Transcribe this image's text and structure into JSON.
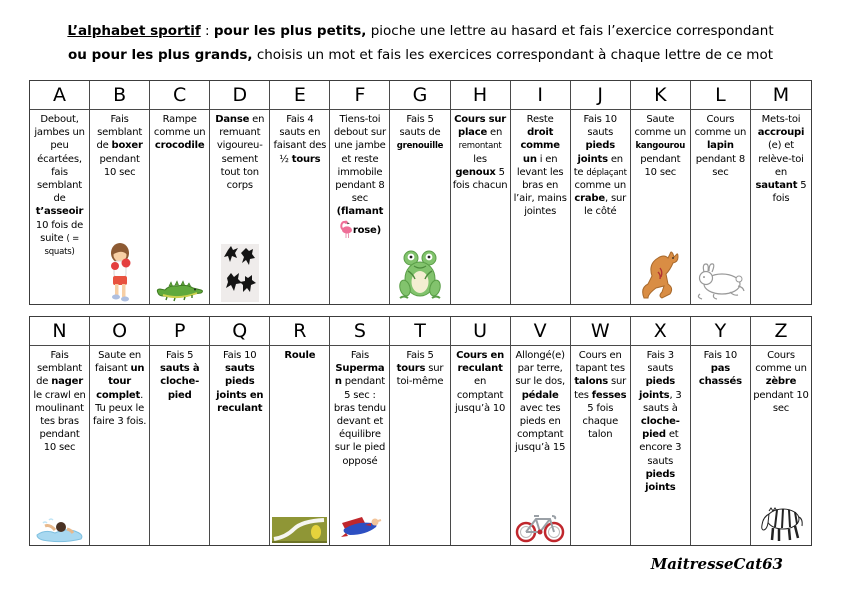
{
  "title": {
    "line1": [
      {
        "t": "L’alphabet sportif",
        "b": true,
        "u": true
      },
      {
        "t": " : "
      },
      {
        "t": "pour les plus petits,",
        "b": true
      },
      {
        "t": " pioche une lettre au hasard et fais l’exercice correspondant"
      }
    ],
    "line2": [
      {
        "t": "ou pour les plus grands,",
        "b": true
      },
      {
        "t": " choisis un mot et fais les exercices correspondant à chaque lettre de ce mot"
      }
    ]
  },
  "tables": [
    {
      "name": "letters-a-m",
      "cells": [
        {
          "letter": "A",
          "segments": [
            {
              "t": "Debout, jambes un peu écartées, fais semblant de "
            },
            {
              "t": "t’asseoir",
              "b": true
            },
            {
              "t": " 10 fois de suite "
            },
            {
              "t": "( = squats)",
              "s": true
            }
          ],
          "icon": null
        },
        {
          "letter": "B",
          "segments": [
            {
              "t": "Fais semblant de "
            },
            {
              "t": "boxer",
              "b": true
            },
            {
              "t": " pendant 10 sec"
            }
          ],
          "icon": "boxer-icon"
        },
        {
          "letter": "C",
          "segments": [
            {
              "t": "Rampe comme un "
            },
            {
              "t": "crocodile",
              "b": true
            }
          ],
          "icon": "crocodile-icon"
        },
        {
          "letter": "D",
          "segments": [
            {
              "t": "Danse",
              "b": true
            },
            {
              "t": " en remuant vigoureu-sement tout ton corps"
            }
          ],
          "icon": "dancers-icon"
        },
        {
          "letter": "E",
          "segments": [
            {
              "t": "Fais 4 sauts en faisant des ½ "
            },
            {
              "t": "tours",
              "b": true
            }
          ],
          "icon": null
        },
        {
          "letter": "F",
          "segments": [
            {
              "t": "Tiens-toi debout sur une jambe et reste immobile pendant 8 sec "
            },
            {
              "t": "(flamant ",
              "b": true
            },
            {
              "icon": "flamingo-icon"
            },
            {
              "t": "rose)",
              "b": true
            }
          ],
          "icon": null
        },
        {
          "letter": "G",
          "segments": [
            {
              "t": "Fais 5 sauts de "
            },
            {
              "t": "grenouille",
              "b": true,
              "s": true
            }
          ],
          "icon": "frog-icon"
        },
        {
          "letter": "H",
          "segments": [
            {
              "t": "Cours sur place",
              "b": true
            },
            {
              "t": " en "
            },
            {
              "t": "remontant",
              "s": true
            },
            {
              "t": " les "
            },
            {
              "t": "genoux",
              "b": true
            },
            {
              "t": " 5 fois chacun"
            }
          ],
          "icon": null
        },
        {
          "letter": "I",
          "segments": [
            {
              "t": "Reste "
            },
            {
              "t": "droit comme un",
              "b": true
            },
            {
              "t": " i en levant les bras en l’air, mains jointes"
            }
          ],
          "icon": null
        },
        {
          "letter": "J",
          "segments": [
            {
              "t": "Fais 10 sauts "
            },
            {
              "t": "pieds joints",
              "b": true
            },
            {
              "t": " en te "
            },
            {
              "t": "déplaçant",
              "s": true
            },
            {
              "t": " comme un "
            },
            {
              "t": "crabe",
              "b": true
            },
            {
              "t": ", sur le côté"
            }
          ],
          "icon": null
        },
        {
          "letter": "K",
          "segments": [
            {
              "t": "Saute comme un "
            },
            {
              "t": "kangourou",
              "b": true,
              "s": true
            },
            {
              "t": " pendant 10 sec"
            }
          ],
          "icon": "kangaroo-icon"
        },
        {
          "letter": "L",
          "segments": [
            {
              "t": "Cours comme un "
            },
            {
              "t": "lapin",
              "b": true
            },
            {
              "t": " pendant 8 sec"
            }
          ],
          "icon": "rabbit-icon"
        },
        {
          "letter": "M",
          "segments": [
            {
              "t": "Mets-toi "
            },
            {
              "t": "accroupi",
              "b": true
            },
            {
              "t": " (e) et relève-toi en "
            },
            {
              "t": "sautant",
              "b": true
            },
            {
              "t": " 5 fois"
            }
          ],
          "icon": null
        }
      ]
    },
    {
      "name": "letters-n-z",
      "cells": [
        {
          "letter": "N",
          "segments": [
            {
              "t": "Fais semblant de "
            },
            {
              "t": "nager",
              "b": true
            },
            {
              "t": " le crawl en moulinant tes bras pendant 10 sec"
            }
          ],
          "icon": "swimmer-icon"
        },
        {
          "letter": "O",
          "segments": [
            {
              "t": "Saute en faisant "
            },
            {
              "t": "un tour complet",
              "b": true
            },
            {
              "t": ". Tu peux le faire 3 fois."
            }
          ],
          "icon": null
        },
        {
          "letter": "P",
          "segments": [
            {
              "t": "Fais 5 "
            },
            {
              "t": "sauts à cloche-pied",
              "b": true
            }
          ],
          "icon": null
        },
        {
          "letter": "Q",
          "segments": [
            {
              "t": "Fais 10 "
            },
            {
              "t": "sauts pieds joints en reculant",
              "b": true
            }
          ],
          "icon": null
        },
        {
          "letter": "R",
          "segments": [
            {
              "t": "Roule",
              "b": true
            }
          ],
          "icon": "road-icon"
        },
        {
          "letter": "S",
          "segments": [
            {
              "t": "Fais "
            },
            {
              "t": "Superman",
              "b": true
            },
            {
              "t": " pendant 5 sec : bras tendu devant et équilibre sur le pied opposé"
            }
          ],
          "icon": "superman-icon"
        },
        {
          "letter": "T",
          "segments": [
            {
              "t": "Fais 5 "
            },
            {
              "t": "tours",
              "b": true
            },
            {
              "t": " sur toi-même"
            }
          ],
          "icon": null
        },
        {
          "letter": "U",
          "segments": [
            {
              "t": "Cours en reculant",
              "b": true
            },
            {
              "t": " en comptant jusqu’à 10"
            }
          ],
          "icon": null
        },
        {
          "letter": "V",
          "segments": [
            {
              "t": "Allongé(e) par terre, sur le dos, "
            },
            {
              "t": "pédale",
              "b": true
            },
            {
              "t": " avec tes pieds en comptant jusqu’à 15"
            }
          ],
          "icon": "bicycle-icon"
        },
        {
          "letter": "W",
          "segments": [
            {
              "t": "Cours en tapant tes "
            },
            {
              "t": "talons",
              "b": true
            },
            {
              "t": " sur tes "
            },
            {
              "t": "fesses",
              "b": true
            },
            {
              "t": " 5 fois chaque talon"
            }
          ],
          "icon": null
        },
        {
          "letter": "X",
          "segments": [
            {
              "t": "Fais 3 sauts "
            },
            {
              "t": "pieds joints",
              "b": true
            },
            {
              "t": ", 3 sauts à "
            },
            {
              "t": "cloche-pied",
              "b": true
            },
            {
              "t": " et encore 3 sauts "
            },
            {
              "t": "pieds joints",
              "b": true
            }
          ],
          "icon": null
        },
        {
          "letter": "Y",
          "segments": [
            {
              "t": "Fais 10 "
            },
            {
              "t": "pas chassés",
              "b": true
            }
          ],
          "icon": null
        },
        {
          "letter": "Z",
          "segments": [
            {
              "t": "Cours comme un "
            },
            {
              "t": "zèbre",
              "b": true
            },
            {
              "t": " pendant 10 sec"
            }
          ],
          "icon": "zebra-icon"
        }
      ]
    }
  ],
  "signature": "MaitresseCat63"
}
